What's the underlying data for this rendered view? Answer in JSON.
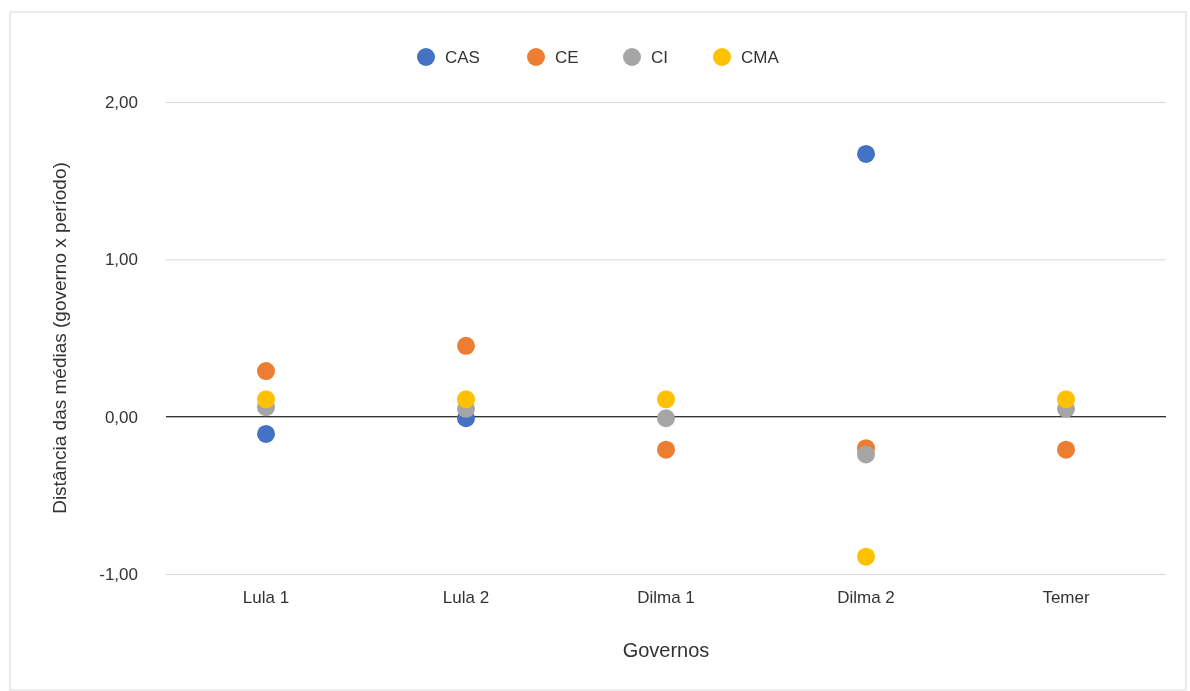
{
  "chart_data": {
    "type": "scatter",
    "xlabel": "Governos",
    "ylabel": "Distância das médias (governo x período)",
    "categories": [
      "Lula 1",
      "Lula 2",
      "Dilma 1",
      "Dilma 2",
      "Temer"
    ],
    "series": [
      {
        "name": "CAS",
        "color": "#4472c4",
        "values": [
          -0.11,
          -0.01,
          null,
          1.67,
          null
        ]
      },
      {
        "name": "CE",
        "color": "#ed7d31",
        "values": [
          0.29,
          0.45,
          -0.21,
          -0.2,
          -0.21
        ]
      },
      {
        "name": "CI",
        "color": "#a5a5a5",
        "values": [
          0.06,
          0.05,
          -0.01,
          -0.24,
          0.05
        ]
      },
      {
        "name": "CMA",
        "color": "#ffc000",
        "values": [
          0.11,
          0.11,
          0.11,
          -0.89,
          0.11
        ]
      }
    ],
    "ylim": [
      -1,
      2
    ],
    "yticks": [
      {
        "value": -1,
        "label": "-1,00"
      },
      {
        "value": 0,
        "label": "0,00"
      },
      {
        "value": 1,
        "label": "1,00"
      },
      {
        "value": 2,
        "label": "2,00"
      }
    ],
    "grid": "y",
    "legend": "top",
    "marker": "circle"
  }
}
